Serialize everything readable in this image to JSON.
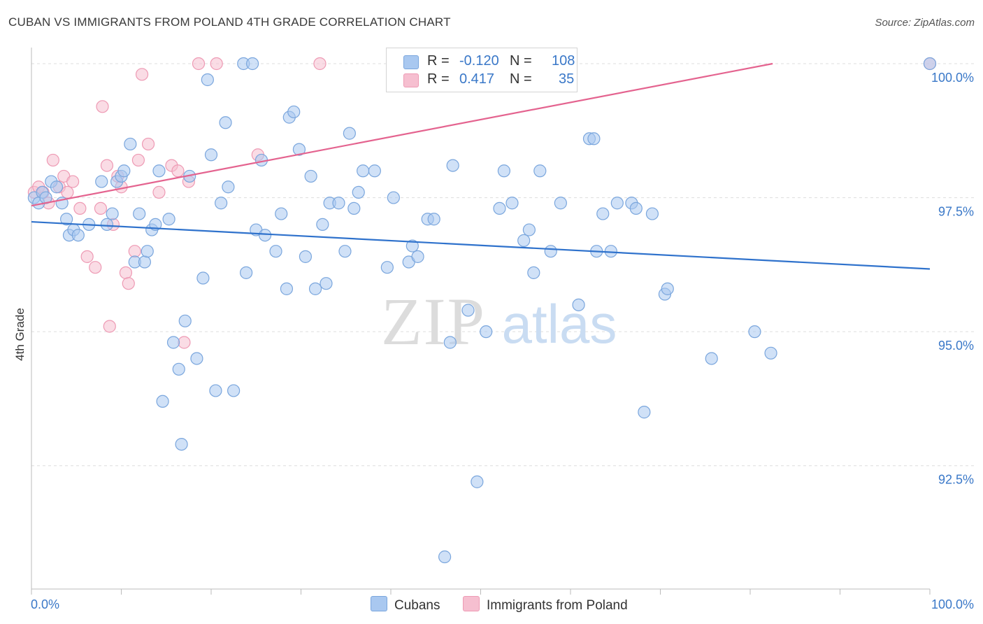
{
  "title": "CUBAN VS IMMIGRANTS FROM POLAND 4TH GRADE CORRELATION CHART",
  "source": "Source: ZipAtlas.com",
  "watermark": {
    "zip": "ZIP",
    "atlas": "atlas"
  },
  "colors": {
    "blue_fill": "#a9c8f0",
    "blue_stroke": "#7aa6dd",
    "blue_line": "#2f72cc",
    "pink_fill": "#f6bfd0",
    "pink_stroke": "#ee9ab4",
    "pink_line": "#e4638f",
    "axis_text": "#3a78c8",
    "grid": "#dddddd"
  },
  "legend": {
    "rows": [
      {
        "r_label": "R =",
        "r_value": "-0.120",
        "n_label": "N =",
        "n_value": "108",
        "color": "#a9c8f0"
      },
      {
        "r_label": "R =",
        "r_value": "0.417",
        "n_label": "N =",
        "n_value": "35",
        "color": "#f6bfd0"
      }
    ]
  },
  "bottom_legend": [
    {
      "label": "Cubans",
      "color": "#a9c8f0"
    },
    {
      "label": "Immigrants from Poland",
      "color": "#f6bfd0"
    }
  ],
  "chart_data": {
    "type": "scatter",
    "title": "CUBAN VS IMMIGRANTS FROM POLAND 4TH GRADE CORRELATION CHART",
    "xlabel": "",
    "ylabel": "4th Grade",
    "xlim": [
      0,
      100
    ],
    "ylim": [
      90.2,
      100.3
    ],
    "x_tick_labels": [
      "0.0%",
      "100.0%"
    ],
    "y_ticks": [
      92.5,
      95.0,
      97.5,
      100.0
    ],
    "y_tick_labels": [
      "92.5%",
      "95.0%",
      "97.5%",
      "100.0%"
    ],
    "grid": "horizontal dashed",
    "legend_position": "top-center",
    "series": [
      {
        "name": "Cubans",
        "trend": {
          "x": [
            0,
            100
          ],
          "y": [
            97.05,
            96.17
          ]
        },
        "points": [
          [
            0.3,
            97.5
          ],
          [
            0.8,
            97.4
          ],
          [
            1.2,
            97.6
          ],
          [
            1.6,
            97.5
          ],
          [
            2.2,
            97.8
          ],
          [
            2.8,
            97.7
          ],
          [
            3.4,
            97.4
          ],
          [
            3.9,
            97.1
          ],
          [
            4.2,
            96.8
          ],
          [
            4.7,
            96.9
          ],
          [
            5.2,
            96.8
          ],
          [
            6.4,
            97.0
          ],
          [
            7.8,
            97.8
          ],
          [
            8.4,
            97.0
          ],
          [
            9.0,
            97.2
          ],
          [
            9.5,
            97.8
          ],
          [
            10.0,
            97.9
          ],
          [
            10.3,
            98.0
          ],
          [
            11.0,
            98.5
          ],
          [
            11.5,
            96.3
          ],
          [
            12.0,
            97.2
          ],
          [
            12.6,
            96.3
          ],
          [
            12.9,
            96.5
          ],
          [
            13.4,
            96.9
          ],
          [
            13.8,
            97.0
          ],
          [
            14.2,
            98.0
          ],
          [
            14.6,
            93.7
          ],
          [
            15.3,
            97.1
          ],
          [
            15.8,
            94.8
          ],
          [
            16.4,
            94.3
          ],
          [
            16.7,
            92.9
          ],
          [
            17.1,
            95.2
          ],
          [
            17.6,
            97.9
          ],
          [
            18.4,
            94.5
          ],
          [
            19.1,
            96.0
          ],
          [
            19.6,
            99.7
          ],
          [
            20.0,
            98.3
          ],
          [
            20.5,
            93.9
          ],
          [
            21.1,
            97.4
          ],
          [
            21.6,
            98.9
          ],
          [
            21.9,
            97.7
          ],
          [
            22.5,
            93.9
          ],
          [
            23.6,
            100.0
          ],
          [
            23.9,
            96.1
          ],
          [
            24.6,
            100.0
          ],
          [
            25.0,
            96.9
          ],
          [
            25.6,
            98.2
          ],
          [
            26.0,
            96.8
          ],
          [
            27.2,
            96.5
          ],
          [
            27.8,
            97.2
          ],
          [
            28.4,
            95.8
          ],
          [
            28.7,
            99.0
          ],
          [
            29.2,
            99.1
          ],
          [
            29.8,
            98.4
          ],
          [
            30.5,
            96.4
          ],
          [
            31.1,
            97.9
          ],
          [
            31.6,
            95.8
          ],
          [
            32.4,
            97.0
          ],
          [
            32.8,
            95.9
          ],
          [
            33.2,
            97.4
          ],
          [
            34.2,
            97.4
          ],
          [
            34.9,
            96.5
          ],
          [
            35.4,
            98.7
          ],
          [
            35.9,
            97.3
          ],
          [
            36.4,
            97.6
          ],
          [
            36.9,
            98.0
          ],
          [
            38.2,
            98.0
          ],
          [
            39.6,
            96.2
          ],
          [
            40.3,
            97.5
          ],
          [
            42.0,
            96.3
          ],
          [
            42.4,
            96.6
          ],
          [
            43.0,
            96.4
          ],
          [
            44.1,
            97.1
          ],
          [
            44.8,
            97.1
          ],
          [
            46.0,
            90.8
          ],
          [
            46.6,
            94.8
          ],
          [
            46.9,
            98.1
          ],
          [
            48.6,
            95.4
          ],
          [
            49.6,
            92.2
          ],
          [
            50.6,
            95.0
          ],
          [
            52.1,
            97.3
          ],
          [
            52.6,
            98.0
          ],
          [
            53.5,
            97.4
          ],
          [
            54.8,
            96.7
          ],
          [
            55.4,
            96.9
          ],
          [
            55.9,
            96.1
          ],
          [
            56.6,
            98.0
          ],
          [
            57.8,
            96.5
          ],
          [
            58.9,
            97.4
          ],
          [
            60.9,
            95.5
          ],
          [
            62.1,
            98.6
          ],
          [
            62.6,
            98.6
          ],
          [
            62.9,
            96.5
          ],
          [
            63.6,
            97.2
          ],
          [
            64.5,
            96.5
          ],
          [
            65.2,
            97.4
          ],
          [
            66.8,
            97.4
          ],
          [
            67.3,
            97.3
          ],
          [
            68.2,
            93.5
          ],
          [
            69.1,
            97.2
          ],
          [
            70.5,
            95.7
          ],
          [
            70.8,
            95.8
          ],
          [
            75.7,
            94.5
          ],
          [
            80.5,
            95.0
          ],
          [
            82.3,
            94.6
          ],
          [
            100.0,
            100.0
          ]
        ]
      },
      {
        "name": "Immigrants from Poland",
        "trend": {
          "x": [
            0,
            82.5
          ],
          "y": [
            97.35,
            100.0
          ]
        },
        "points": [
          [
            0.3,
            97.6
          ],
          [
            0.8,
            97.7
          ],
          [
            1.3,
            97.6
          ],
          [
            1.9,
            97.4
          ],
          [
            2.4,
            98.2
          ],
          [
            3.1,
            97.7
          ],
          [
            3.6,
            97.9
          ],
          [
            4.0,
            97.6
          ],
          [
            4.6,
            97.8
          ],
          [
            5.4,
            97.3
          ],
          [
            6.2,
            96.4
          ],
          [
            7.1,
            96.2
          ],
          [
            7.7,
            97.3
          ],
          [
            7.9,
            99.2
          ],
          [
            8.4,
            98.1
          ],
          [
            8.7,
            95.1
          ],
          [
            9.1,
            97.0
          ],
          [
            9.6,
            97.9
          ],
          [
            10.0,
            97.7
          ],
          [
            10.5,
            96.1
          ],
          [
            10.8,
            95.9
          ],
          [
            11.5,
            96.5
          ],
          [
            11.9,
            98.2
          ],
          [
            12.3,
            99.8
          ],
          [
            13.0,
            98.5
          ],
          [
            14.2,
            97.6
          ],
          [
            15.6,
            98.1
          ],
          [
            16.3,
            98.0
          ],
          [
            17.0,
            94.8
          ],
          [
            17.5,
            97.8
          ],
          [
            18.6,
            100.0
          ],
          [
            20.6,
            100.0
          ],
          [
            25.2,
            98.3
          ],
          [
            32.1,
            100.0
          ],
          [
            100.0,
            100.0
          ]
        ]
      }
    ]
  }
}
